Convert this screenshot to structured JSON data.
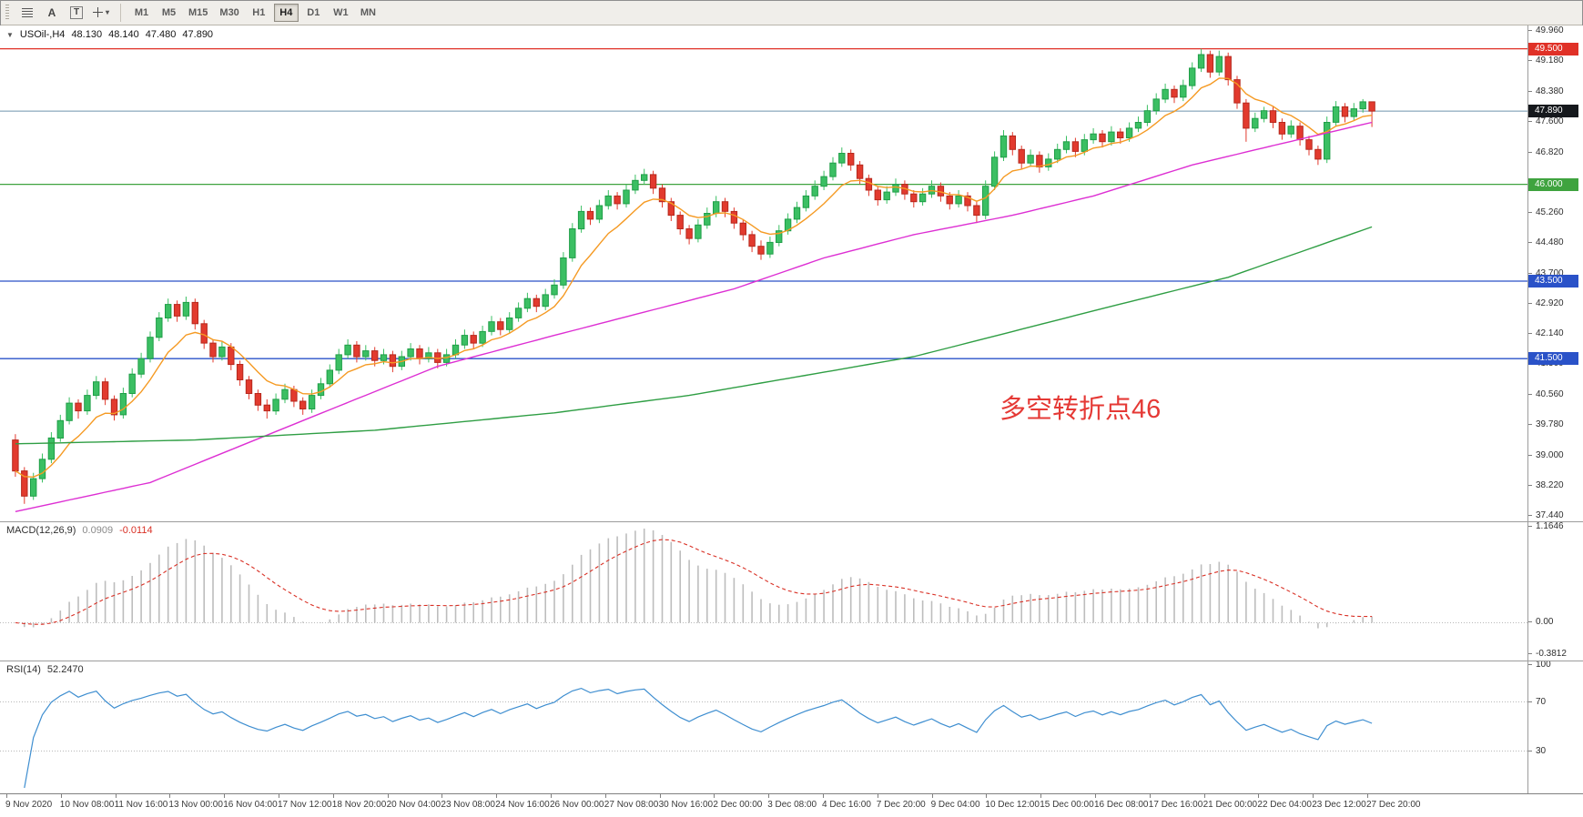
{
  "toolbar": {
    "tools": [
      {
        "name": "charts-list-icon",
        "label": ""
      },
      {
        "name": "cursor-tool",
        "label": "A"
      },
      {
        "name": "text-tool",
        "label": "T"
      },
      {
        "name": "shapes-dropdown",
        "label": ""
      }
    ],
    "timeframes": [
      "M1",
      "M5",
      "M15",
      "M30",
      "H1",
      "H4",
      "D1",
      "W1",
      "MN"
    ],
    "active_timeframe": "H4"
  },
  "quote": {
    "marker": "▼",
    "symbol_period": "USOil-,H4",
    "open": "48.130",
    "high": "48.140",
    "low": "47.480",
    "close": "47.890"
  },
  "annotation": {
    "text": "多空转折点46",
    "color": "#e53935"
  },
  "chart_data": [
    {
      "type": "candlestick",
      "title": "USOil- H4 candlestick chart",
      "up_color": "#3bbf63",
      "up_border": "#1f9e47",
      "down_color": "#e23a2e",
      "down_border": "#b6281d",
      "y_axis_labels": [
        "49.960",
        "49.180",
        "48.380",
        "47.600",
        "46.820",
        "46.040",
        "45.260",
        "44.480",
        "43.700",
        "42.920",
        "42.140",
        "41.360",
        "40.560",
        "39.780",
        "39.000",
        "38.220",
        "37.440"
      ],
      "x_axis_labels": [
        "9 Nov 2020",
        "10 Nov 08:00",
        "11 Nov 16:00",
        "13 Nov 00:00",
        "16 Nov 04:00",
        "17 Nov 12:00",
        "18 Nov 20:00",
        "20 Nov 04:00",
        "23 Nov 08:00",
        "24 Nov 16:00",
        "26 Nov 00:00",
        "27 Nov 08:00",
        "30 Nov 16:00",
        "2 Dec 00:00",
        "3 Dec 08:00",
        "4 Dec 16:00",
        "7 Dec 20:00",
        "9 Dec 04:00",
        "10 Dec 12:00",
        "15 Dec 00:00",
        "16 Dec 08:00",
        "17 Dec 16:00",
        "21 Dec 00:00",
        "22 Dec 04:00",
        "23 Dec 12:00",
        "27 Dec 20:00"
      ],
      "h_lines": [
        {
          "value": 49.5,
          "label": "49.500",
          "color": "#e03127"
        },
        {
          "value": 46.0,
          "label": "46.000",
          "color": "#3fa33f"
        },
        {
          "value": 43.5,
          "label": "43.500",
          "color": "#2a52c8"
        },
        {
          "value": 41.5,
          "label": "41.500",
          "color": "#2a52c8"
        }
      ],
      "bid_line": {
        "value": 47.89,
        "label": "47.890",
        "color": "#6f94ad",
        "tag_color": "#15181c"
      },
      "moving_averages": [
        {
          "name": "MA fast",
          "color": "#f59a23",
          "period": 8
        },
        {
          "name": "MA mid",
          "color": "#dd2fd3",
          "points": [
            [
              0,
              37.55
            ],
            [
              15,
              38.3
            ],
            [
              32,
              39.9
            ],
            [
              47,
              41.3
            ],
            [
              60,
              42.1
            ],
            [
              70,
              42.7
            ],
            [
              80,
              43.3
            ],
            [
              90,
              44.1
            ],
            [
              100,
              44.7
            ],
            [
              111,
              45.2
            ],
            [
              120,
              45.7
            ],
            [
              131,
              46.5
            ],
            [
              140,
              47.0
            ],
            [
              151,
              47.6
            ]
          ]
        },
        {
          "name": "MA slow",
          "color": "#2f9e44",
          "points": [
            [
              0,
              39.3
            ],
            [
              20,
              39.4
            ],
            [
              40,
              39.65
            ],
            [
              60,
              40.1
            ],
            [
              75,
              40.55
            ],
            [
              100,
              41.55
            ],
            [
              122,
              42.85
            ],
            [
              135,
              43.6
            ],
            [
              151,
              44.9
            ]
          ]
        }
      ],
      "ohlc": [
        [
          39.4,
          39.55,
          38.45,
          38.6
        ],
        [
          38.6,
          38.7,
          37.75,
          37.95
        ],
        [
          37.95,
          38.55,
          37.85,
          38.4
        ],
        [
          38.4,
          39.05,
          38.3,
          38.9
        ],
        [
          38.9,
          39.6,
          38.8,
          39.45
        ],
        [
          39.45,
          40.05,
          39.35,
          39.9
        ],
        [
          39.9,
          40.5,
          39.8,
          40.35
        ],
        [
          40.35,
          40.45,
          39.95,
          40.15
        ],
        [
          40.15,
          40.7,
          40.05,
          40.55
        ],
        [
          40.55,
          41.05,
          40.45,
          40.9
        ],
        [
          40.9,
          41.0,
          40.3,
          40.45
        ],
        [
          40.45,
          40.55,
          39.9,
          40.05
        ],
        [
          40.05,
          40.75,
          39.95,
          40.6
        ],
        [
          40.6,
          41.25,
          40.5,
          41.1
        ],
        [
          41.1,
          41.65,
          41.0,
          41.5
        ],
        [
          41.5,
          42.2,
          41.4,
          42.05
        ],
        [
          42.05,
          42.7,
          41.95,
          42.55
        ],
        [
          42.55,
          43.05,
          42.45,
          42.9
        ],
        [
          42.9,
          43.0,
          42.45,
          42.6
        ],
        [
          42.6,
          43.1,
          42.5,
          42.95
        ],
        [
          42.95,
          43.05,
          42.25,
          42.4
        ],
        [
          42.4,
          42.5,
          41.75,
          41.9
        ],
        [
          41.9,
          42.0,
          41.4,
          41.55
        ],
        [
          41.55,
          41.95,
          41.45,
          41.8
        ],
        [
          41.8,
          41.9,
          41.2,
          41.35
        ],
        [
          41.35,
          41.45,
          40.8,
          40.95
        ],
        [
          40.95,
          41.05,
          40.45,
          40.6
        ],
        [
          40.6,
          40.7,
          40.15,
          40.3
        ],
        [
          40.3,
          40.45,
          39.95,
          40.15
        ],
        [
          40.15,
          40.6,
          40.05,
          40.45
        ],
        [
          40.45,
          40.85,
          40.35,
          40.7
        ],
        [
          40.7,
          40.8,
          40.25,
          40.4
        ],
        [
          40.4,
          40.5,
          40.05,
          40.2
        ],
        [
          40.2,
          40.7,
          40.1,
          40.55
        ],
        [
          40.55,
          41.0,
          40.45,
          40.85
        ],
        [
          40.85,
          41.35,
          40.75,
          41.2
        ],
        [
          41.2,
          41.75,
          41.1,
          41.6
        ],
        [
          41.6,
          42.0,
          41.5,
          41.85
        ],
        [
          41.85,
          41.95,
          41.4,
          41.55
        ],
        [
          41.55,
          41.85,
          41.45,
          41.7
        ],
        [
          41.7,
          41.8,
          41.3,
          41.45
        ],
        [
          41.45,
          41.75,
          41.35,
          41.6
        ],
        [
          41.6,
          41.7,
          41.15,
          41.3
        ],
        [
          41.3,
          41.7,
          41.2,
          41.55
        ],
        [
          41.55,
          41.9,
          41.45,
          41.75
        ],
        [
          41.75,
          41.85,
          41.35,
          41.5
        ],
        [
          41.5,
          41.8,
          41.4,
          41.65
        ],
        [
          41.65,
          41.75,
          41.25,
          41.4
        ],
        [
          41.4,
          41.75,
          41.3,
          41.6
        ],
        [
          41.6,
          42.0,
          41.5,
          41.85
        ],
        [
          41.85,
          42.25,
          41.75,
          42.1
        ],
        [
          42.1,
          42.2,
          41.75,
          41.9
        ],
        [
          41.9,
          42.35,
          41.8,
          42.2
        ],
        [
          42.2,
          42.6,
          42.1,
          42.45
        ],
        [
          42.45,
          42.55,
          42.1,
          42.25
        ],
        [
          42.25,
          42.7,
          42.15,
          42.55
        ],
        [
          42.55,
          42.95,
          42.45,
          42.8
        ],
        [
          42.8,
          43.2,
          42.7,
          43.05
        ],
        [
          43.05,
          43.15,
          42.7,
          42.85
        ],
        [
          42.85,
          43.3,
          42.75,
          43.15
        ],
        [
          43.15,
          43.55,
          43.05,
          43.4
        ],
        [
          43.4,
          44.25,
          43.3,
          44.1
        ],
        [
          44.1,
          45.0,
          44.0,
          44.85
        ],
        [
          44.85,
          45.45,
          44.75,
          45.3
        ],
        [
          45.3,
          45.4,
          44.95,
          45.1
        ],
        [
          45.1,
          45.6,
          45.0,
          45.45
        ],
        [
          45.45,
          45.85,
          45.35,
          45.7
        ],
        [
          45.7,
          45.8,
          45.35,
          45.5
        ],
        [
          45.5,
          46.0,
          45.4,
          45.85
        ],
        [
          45.85,
          46.25,
          45.75,
          46.1
        ],
        [
          46.1,
          46.4,
          46.0,
          46.25
        ],
        [
          46.25,
          46.35,
          45.75,
          45.9
        ],
        [
          45.9,
          46.0,
          45.4,
          45.55
        ],
        [
          45.55,
          45.65,
          45.05,
          45.2
        ],
        [
          45.2,
          45.3,
          44.7,
          44.85
        ],
        [
          44.85,
          44.95,
          44.45,
          44.6
        ],
        [
          44.6,
          45.1,
          44.5,
          44.95
        ],
        [
          44.95,
          45.4,
          44.85,
          45.25
        ],
        [
          45.25,
          45.7,
          45.15,
          45.55
        ],
        [
          45.55,
          45.65,
          45.15,
          45.3
        ],
        [
          45.3,
          45.4,
          44.85,
          45.0
        ],
        [
          45.0,
          45.1,
          44.55,
          44.7
        ],
        [
          44.7,
          44.8,
          44.25,
          44.4
        ],
        [
          44.4,
          44.55,
          44.05,
          44.2
        ],
        [
          44.2,
          44.65,
          44.1,
          44.5
        ],
        [
          44.5,
          44.95,
          44.4,
          44.8
        ],
        [
          44.8,
          45.25,
          44.7,
          45.1
        ],
        [
          45.1,
          45.55,
          45.0,
          45.4
        ],
        [
          45.4,
          45.85,
          45.3,
          45.7
        ],
        [
          45.7,
          46.1,
          45.6,
          45.95
        ],
        [
          45.95,
          46.35,
          45.85,
          46.2
        ],
        [
          46.2,
          46.7,
          46.1,
          46.55
        ],
        [
          46.55,
          46.95,
          46.45,
          46.8
        ],
        [
          46.8,
          46.9,
          46.35,
          46.5
        ],
        [
          46.5,
          46.6,
          46.0,
          46.15
        ],
        [
          46.15,
          46.25,
          45.7,
          45.85
        ],
        [
          45.85,
          45.95,
          45.45,
          45.6
        ],
        [
          45.6,
          45.95,
          45.5,
          45.8
        ],
        [
          45.8,
          46.15,
          45.7,
          46.0
        ],
        [
          46.0,
          46.1,
          45.6,
          45.75
        ],
        [
          45.75,
          45.85,
          45.4,
          45.55
        ],
        [
          45.55,
          45.9,
          45.45,
          45.75
        ],
        [
          45.75,
          46.1,
          45.65,
          45.95
        ],
        [
          45.95,
          46.05,
          45.55,
          45.7
        ],
        [
          45.7,
          45.8,
          45.35,
          45.5
        ],
        [
          45.5,
          45.85,
          45.4,
          45.7
        ],
        [
          45.7,
          45.8,
          45.3,
          45.45
        ],
        [
          45.45,
          45.55,
          45.0,
          45.2
        ],
        [
          45.2,
          46.1,
          45.1,
          45.95
        ],
        [
          45.95,
          46.85,
          45.85,
          46.7
        ],
        [
          46.7,
          47.4,
          46.6,
          47.25
        ],
        [
          47.25,
          47.35,
          46.75,
          46.9
        ],
        [
          46.9,
          47.0,
          46.4,
          46.55
        ],
        [
          46.55,
          46.9,
          46.45,
          46.75
        ],
        [
          46.75,
          46.85,
          46.3,
          46.45
        ],
        [
          46.45,
          46.8,
          46.35,
          46.65
        ],
        [
          46.65,
          47.05,
          46.55,
          46.9
        ],
        [
          46.9,
          47.25,
          46.8,
          47.1
        ],
        [
          47.1,
          47.2,
          46.7,
          46.85
        ],
        [
          46.85,
          47.3,
          46.75,
          47.15
        ],
        [
          47.15,
          47.45,
          47.05,
          47.3
        ],
        [
          47.3,
          47.4,
          46.95,
          47.1
        ],
        [
          47.1,
          47.5,
          47.0,
          47.35
        ],
        [
          47.35,
          47.45,
          47.05,
          47.2
        ],
        [
          47.2,
          47.6,
          47.1,
          47.45
        ],
        [
          47.45,
          47.75,
          47.35,
          47.6
        ],
        [
          47.6,
          48.05,
          47.5,
          47.9
        ],
        [
          47.9,
          48.35,
          47.8,
          48.2
        ],
        [
          48.2,
          48.6,
          48.1,
          48.45
        ],
        [
          48.45,
          48.55,
          48.1,
          48.25
        ],
        [
          48.25,
          48.7,
          48.15,
          48.55
        ],
        [
          48.55,
          49.15,
          48.45,
          49.0
        ],
        [
          49.0,
          49.5,
          48.9,
          49.35
        ],
        [
          49.35,
          49.45,
          48.75,
          48.9
        ],
        [
          48.9,
          49.45,
          48.8,
          49.3
        ],
        [
          49.3,
          49.4,
          48.55,
          48.7
        ],
        [
          48.7,
          48.8,
          47.95,
          48.1
        ],
        [
          48.1,
          48.2,
          47.1,
          47.45
        ],
        [
          47.45,
          47.85,
          47.35,
          47.7
        ],
        [
          47.7,
          48.0,
          47.6,
          47.9
        ],
        [
          47.9,
          48.0,
          47.45,
          47.6
        ],
        [
          47.6,
          47.7,
          47.15,
          47.3
        ],
        [
          47.3,
          47.65,
          47.2,
          47.5
        ],
        [
          47.5,
          47.6,
          47.0,
          47.15
        ],
        [
          47.15,
          47.25,
          46.75,
          46.9
        ],
        [
          46.9,
          47.0,
          46.5,
          46.65
        ],
        [
          46.65,
          47.75,
          46.55,
          47.6
        ],
        [
          47.6,
          48.15,
          47.5,
          48.0
        ],
        [
          48.0,
          48.1,
          47.6,
          47.75
        ],
        [
          47.75,
          48.1,
          47.65,
          47.95
        ],
        [
          47.95,
          48.2,
          47.85,
          48.13
        ],
        [
          48.13,
          48.14,
          47.48,
          47.89
        ]
      ]
    },
    {
      "type": "macd",
      "label": "MACD(12,26,9)",
      "fast": 12,
      "slow": 26,
      "signal_period": 9,
      "current_main": "0.0909",
      "current_signal": "-0.0114",
      "axis_labels": [
        "1.1646",
        "0.00",
        "-0.3812"
      ],
      "ylim": [
        -0.3812,
        1.1646
      ],
      "histogram_color": "#bdbdbd",
      "signal_color": "#d93025",
      "signal_style": "dashed",
      "source": "computed from main chart closes"
    },
    {
      "type": "rsi",
      "label": "RSI(14)",
      "period": 14,
      "current": "52.2470",
      "levels": [
        70,
        30
      ],
      "axis_labels": [
        "100",
        "70",
        "30"
      ],
      "ylim": [
        0,
        100
      ],
      "line_color": "#3e8ed0",
      "source": "computed from main chart closes"
    }
  ]
}
